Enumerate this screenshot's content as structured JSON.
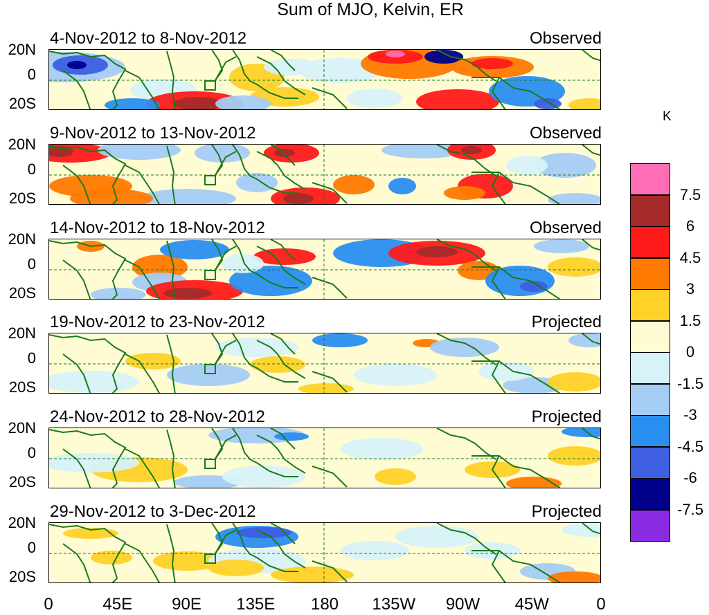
{
  "title": "Sum of MJO, Kelvin, ER",
  "panels": [
    {
      "date": "4-Nov-2012 to 8-Nov-2012",
      "status": "Observed"
    },
    {
      "date": "9-Nov-2012 to 13-Nov-2012",
      "status": "Observed"
    },
    {
      "date": "14-Nov-2012 to 18-Nov-2012",
      "status": "Observed"
    },
    {
      "date": "19-Nov-2012 to 23-Nov-2012",
      "status": "Projected"
    },
    {
      "date": "24-Nov-2012 to 28-Nov-2012",
      "status": "Projected"
    },
    {
      "date": "29-Nov-2012 to 3-Dec-2012",
      "status": "Projected"
    }
  ],
  "y_labels": [
    "20N",
    "0",
    "20S"
  ],
  "x_labels": [
    "0",
    "45E",
    "90E",
    "135E",
    "180",
    "135W",
    "90W",
    "45W",
    "0"
  ],
  "colorbar": {
    "unit": "K",
    "labels": [
      "7.5",
      "6",
      "4.5",
      "3",
      "1.5",
      "0",
      "-1.5",
      "-3",
      "-4.5",
      "-6",
      "-7.5"
    ],
    "colors": [
      "#ff6eb4",
      "#a52a2a",
      "#ff1a1a",
      "#ff7a00",
      "#ffd228",
      "#fffbd3",
      "#d7f2f8",
      "#a5ccf5",
      "#2a8ef0",
      "#3d5fe0",
      "#00008b",
      "#8a2be2"
    ]
  },
  "map_line_color": "#1a7a1a"
}
